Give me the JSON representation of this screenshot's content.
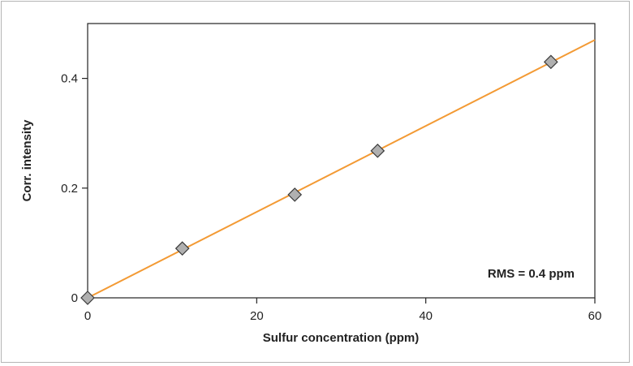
{
  "chart_data": {
    "type": "scatter",
    "title": "",
    "xlabel": "Sulfur concentration (ppm)",
    "ylabel": "Corr. intensity",
    "xlim": [
      0,
      60
    ],
    "ylim": [
      0,
      0.5
    ],
    "x_ticks": [
      0,
      20,
      40,
      60
    ],
    "x_tick_labels": [
      "0",
      "20",
      "40",
      "60"
    ],
    "y_ticks": [
      0,
      0.2,
      0.4
    ],
    "y_tick_labels": [
      "0",
      "0.2",
      "0.4"
    ],
    "grid": false,
    "series": [
      {
        "type": "scatter",
        "marker": "diamond",
        "color": "#b0b0b0",
        "points": [
          {
            "x": 0,
            "y": 0.0
          },
          {
            "x": 11.2,
            "y": 0.09
          },
          {
            "x": 24.5,
            "y": 0.188
          },
          {
            "x": 34.3,
            "y": 0.268
          },
          {
            "x": 54.8,
            "y": 0.43
          }
        ]
      },
      {
        "type": "line",
        "color": "#f39a34",
        "points": [
          {
            "x": 0,
            "y": 0.0
          },
          {
            "x": 60,
            "y": 0.47
          }
        ]
      }
    ],
    "annotation": "RMS = 0.4 ppm"
  }
}
